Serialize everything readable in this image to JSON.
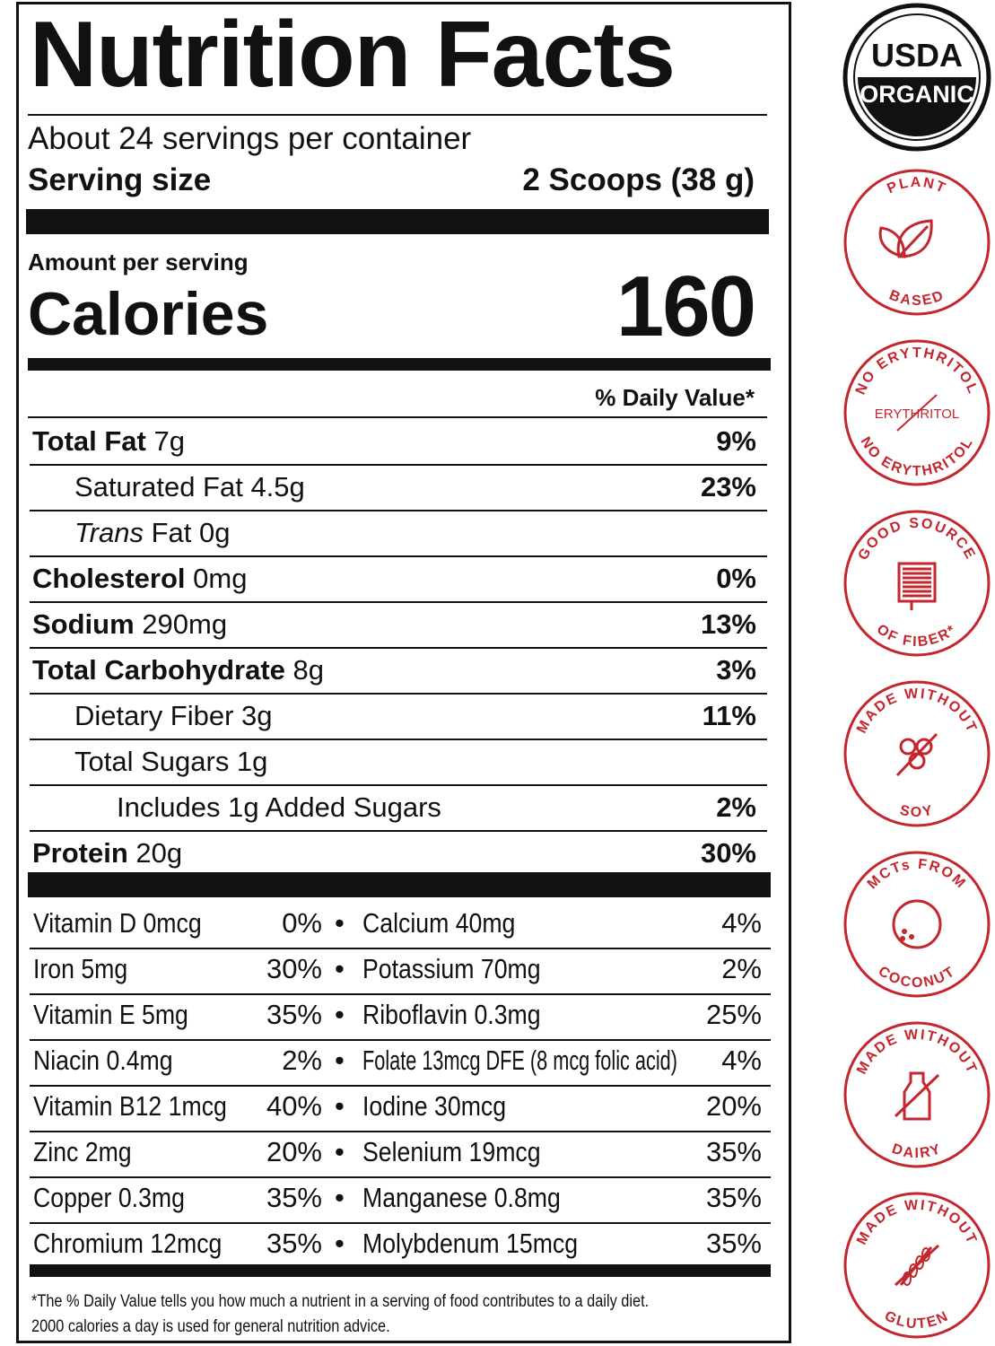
{
  "label": {
    "title": "Nutrition Facts",
    "servings": "About 24 servings per container",
    "serving_size_label": "Serving size",
    "serving_size_value": "2 Scoops (38 g)",
    "amount_per_serving": "Amount per serving",
    "calories_label": "Calories",
    "calories_value": "160",
    "daily_value_header": "% Daily Value*",
    "nutrients": [
      {
        "bold": "Total Fat",
        "amount": " 7g",
        "dv": "9%",
        "indent": 0
      },
      {
        "bold": "",
        "amount": "Saturated Fat 4.5g",
        "dv": "23%",
        "indent": 1
      },
      {
        "italic": "Trans",
        "amount": " Fat 0g",
        "dv": "",
        "indent": 1
      },
      {
        "bold": "Cholesterol",
        "amount": " 0mg",
        "dv": "0%",
        "indent": 0
      },
      {
        "bold": "Sodium",
        "amount": " 290mg",
        "dv": "13%",
        "indent": 0
      },
      {
        "bold": "Total Carbohydrate",
        "amount": " 8g",
        "dv": "3%",
        "indent": 0
      },
      {
        "bold": "",
        "amount": "Dietary Fiber 3g",
        "dv": "11%",
        "indent": 1
      },
      {
        "bold": "",
        "amount": "Total Sugars 1g",
        "dv": "",
        "indent": 1
      },
      {
        "bold": "",
        "amount": "Includes 1g Added Sugars",
        "dv": "2%",
        "indent": 2
      },
      {
        "bold": "Protein",
        "amount": " 20g",
        "dv": "30%",
        "indent": 0
      }
    ],
    "vitamins": [
      [
        "Vitamin D 0mcg",
        "0%",
        "Calcium 40mg",
        "4%"
      ],
      [
        "Iron 5mg",
        "30%",
        "Potassium 70mg",
        "2%"
      ],
      [
        "Vitamin E 5mg",
        "35%",
        "Riboflavin 0.3mg",
        "25%"
      ],
      [
        "Niacin 0.4mg",
        "2%",
        "Folate 13mcg DFE (8 mcg folic acid)",
        "4%"
      ],
      [
        "Vitamin B12 1mcg",
        "40%",
        "Iodine 30mcg",
        "20%"
      ],
      [
        "Zinc 2mg",
        "20%",
        "Selenium 19mcg",
        "35%"
      ],
      [
        "Copper 0.3mg",
        "35%",
        "Manganese 0.8mg",
        "35%"
      ],
      [
        "Chromium 12mcg",
        "35%",
        "Molybdenum 15mcg",
        "35%"
      ]
    ],
    "bullet": "•",
    "footnote_1": "*The % Daily Value tells you how much a nutrient in a serving of food contributes to a daily diet.",
    "footnote_2": "2000 calories a day is used for general nutrition advice."
  },
  "badges": [
    {
      "name": "usda-organic",
      "top": "USDA",
      "bottom": "ORGANIC",
      "icon": "usda-organic-seal"
    },
    {
      "name": "plant-based",
      "top": "PLANT",
      "bottom": "BASED",
      "icon": "leaf-icon"
    },
    {
      "name": "no-erythritol",
      "top": "NO ERYTHRITOL",
      "bottom": "NO ERYTHRITOL",
      "center": "ERYTHRITOL",
      "icon": "crossed-out-text-icon"
    },
    {
      "name": "good-source-of-fiber",
      "top": "GOOD SOURCE",
      "bottom": "OF FIBER*",
      "icon": "intestine-icon"
    },
    {
      "name": "made-without-soy",
      "top": "MADE WITHOUT",
      "bottom": "SOY",
      "icon": "soybean-icon"
    },
    {
      "name": "mcts-from-coconut",
      "top": "MCTs FROM",
      "bottom": "COCONUT",
      "icon": "coconut-icon"
    },
    {
      "name": "made-without-dairy",
      "top": "MADE WITHOUT",
      "bottom": "DAIRY",
      "icon": "milk-bottle-icon"
    },
    {
      "name": "made-without-gluten",
      "top": "MADE WITHOUT",
      "bottom": "GLUTEN",
      "icon": "wheat-icon"
    }
  ],
  "colors": {
    "ink": "#111111",
    "badge_red": "#c4262e"
  }
}
